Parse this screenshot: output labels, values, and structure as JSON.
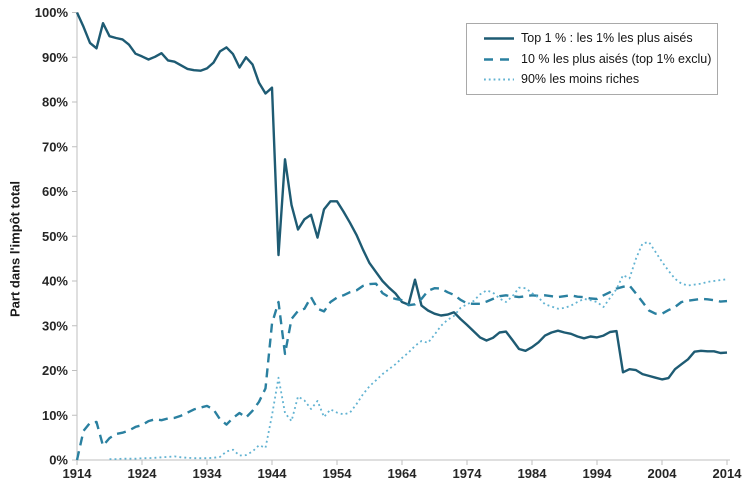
{
  "chart_data": {
    "type": "line",
    "title": "",
    "xlabel": "",
    "ylabel": "Part dans l'impôt total",
    "xlim": [
      1914,
      2014
    ],
    "ylim": [
      0,
      100
    ],
    "grid": false,
    "legend_position": "top-right",
    "x_ticks": [
      1914,
      1924,
      1934,
      1944,
      1954,
      1964,
      1974,
      1984,
      1994,
      2004,
      2014
    ],
    "y_ticks": [
      {
        "value": 0,
        "label": "0%"
      },
      {
        "value": 10,
        "label": "10%"
      },
      {
        "value": 20,
        "label": "20%"
      },
      {
        "value": 30,
        "label": "30%"
      },
      {
        "value": 40,
        "label": "40%"
      },
      {
        "value": 50,
        "label": "50%"
      },
      {
        "value": 60,
        "label": "60%"
      },
      {
        "value": 70,
        "label": "70%"
      },
      {
        "value": 80,
        "label": "80%"
      },
      {
        "value": 90,
        "label": "90%"
      },
      {
        "value": 100,
        "label": "100%"
      }
    ],
    "series": [
      {
        "name": "Top 1 % : les 1% les plus aisés",
        "style": "solid",
        "color": "#1e5b73",
        "start_year": 1914,
        "values": [
          100,
          96.8,
          93.2,
          92,
          97.6,
          94.7,
          94.3,
          94,
          92.8,
          90.8,
          90.2,
          89.5,
          90.1,
          90.9,
          89.3,
          89,
          88.2,
          87.4,
          87.1,
          87,
          87.5,
          88.8,
          91.3,
          92.2,
          90.7,
          87.7,
          90,
          88.4,
          84.3,
          81.9,
          83.2,
          45.8,
          67.2,
          57,
          51.5,
          53.8,
          54.8,
          49.7,
          56,
          57.8,
          57.8,
          55.5,
          53,
          50.3,
          47,
          44,
          42,
          40,
          38.5,
          37.2,
          35.3,
          34.7,
          40.3,
          34.5,
          33.4,
          32.7,
          32.3,
          32.5,
          33,
          31.5,
          30.2,
          28.8,
          27.4,
          26.7,
          27.3,
          28.5,
          28.7,
          26.8,
          24.8,
          24.4,
          25.2,
          26.3,
          27.8,
          28.5,
          28.9,
          28.5,
          28.2,
          27.6,
          27.2,
          27.6,
          27.4,
          27.8,
          28.6,
          28.8,
          19.6,
          20.3,
          20.1,
          19.2,
          18.8,
          18.4,
          18,
          18.3,
          20.3,
          21.4,
          22.5,
          24.2,
          24.4,
          24.3,
          24.3,
          23.9,
          24
        ]
      },
      {
        "name": "10 % les plus aisés (top 1% exclu)",
        "style": "dashed",
        "color": "#2a80a0",
        "start_year": 1914,
        "values": [
          0,
          6.5,
          8.3,
          8.5,
          3.2,
          4.9,
          5.8,
          6.1,
          6.6,
          7.4,
          7.8,
          8.7,
          9.1,
          8.9,
          9.3,
          9.4,
          9.9,
          10.6,
          11.3,
          11.7,
          12.1,
          11.3,
          9.1,
          7.9,
          9.4,
          10.5,
          9.5,
          11,
          13,
          16,
          30.5,
          35.3,
          23.7,
          31.5,
          33.3,
          33.8,
          36.4,
          33.8,
          33.2,
          35.3,
          36.3,
          36.8,
          37.5,
          37.9,
          38.9,
          39.3,
          39.4,
          37.3,
          36.4,
          36,
          35.7,
          34.6,
          34.8,
          36,
          37.8,
          38.4,
          38.3,
          37.5,
          36.9,
          35.8,
          35,
          34.9,
          34.9,
          35.4,
          36,
          36.6,
          36.8,
          36.6,
          36.4,
          36.6,
          36.8,
          36.7,
          36.8,
          36.6,
          36.4,
          36.6,
          36.8,
          36.5,
          36.4,
          36.1,
          36,
          36.8,
          37.5,
          38.3,
          38.7,
          39,
          37.2,
          35.3,
          33.4,
          32.7,
          32.7,
          33.5,
          34.2,
          35.3,
          35.6,
          35.8,
          36,
          35.9,
          35.7,
          35.4,
          35.5
        ]
      },
      {
        "name": "90% les moins riches",
        "style": "dotted",
        "color": "#62b3d2",
        "start_year": 1919,
        "values": [
          0.2,
          0.2,
          0.3,
          0.3,
          0.3,
          0.4,
          0.4,
          0.5,
          0.6,
          0.7,
          0.8,
          0.6,
          0.5,
          0.4,
          0.4,
          0.4,
          0.5,
          0.7,
          1.9,
          2.3,
          1,
          1.1,
          1.9,
          3.3,
          2.7,
          10,
          18.4,
          10.5,
          8.7,
          14.2,
          13.3,
          11.4,
          13.2,
          9.6,
          11.3,
          10.6,
          10.2,
          10.6,
          12.5,
          14.7,
          16.5,
          17.8,
          19.2,
          20.3,
          21.4,
          22.8,
          24,
          25.5,
          26.6,
          26.2,
          28,
          30,
          31.3,
          32.2,
          34,
          34.8,
          35.5,
          37,
          37.9,
          37.4,
          36.1,
          35.3,
          36.6,
          38.5,
          38.4,
          37.3,
          36.3,
          34.8,
          34.3,
          33.8,
          34,
          34.5,
          35.3,
          36,
          35.7,
          35.3,
          34.2,
          36.2,
          38.2,
          41.3,
          40.6,
          45,
          48.4,
          48.7,
          46.5,
          44.3,
          42.3,
          40.5,
          39.4,
          39,
          39.2,
          39.4,
          39.8,
          40,
          40.2,
          40.4
        ]
      }
    ]
  }
}
